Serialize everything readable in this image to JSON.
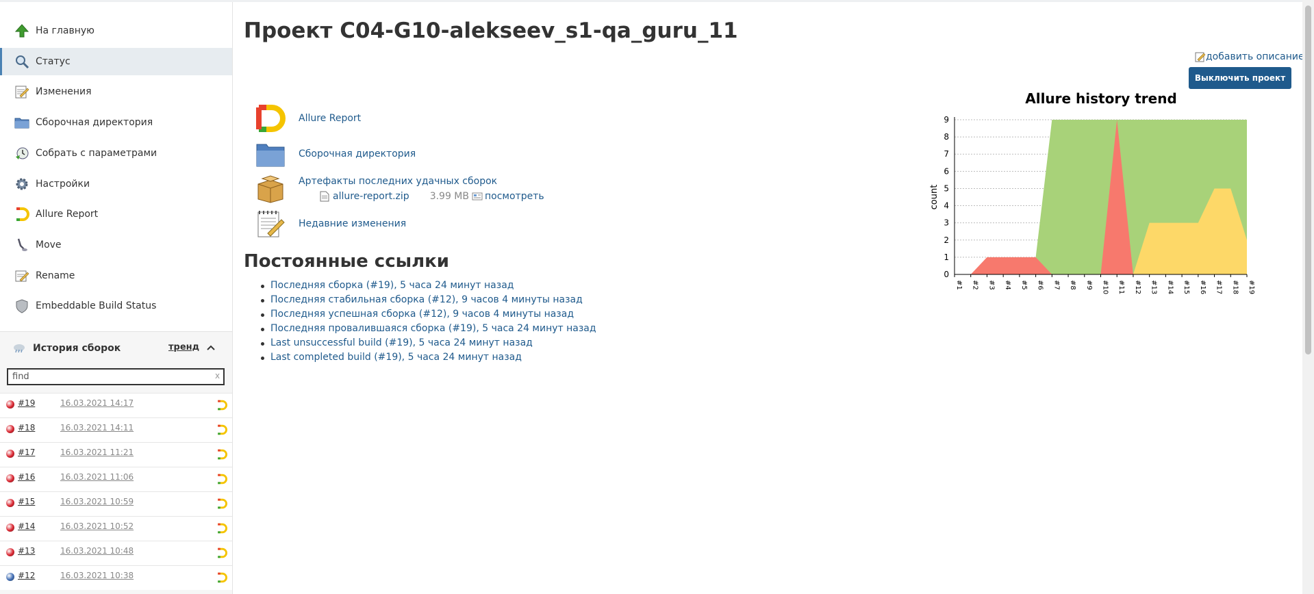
{
  "sidebar": {
    "tasks": [
      {
        "label": "На главную",
        "icon": "up-arrow-icon"
      },
      {
        "label": "Статус",
        "icon": "magnifier-icon"
      },
      {
        "label": "Изменения",
        "icon": "notepad-icon"
      },
      {
        "label": "Сборочная директория",
        "icon": "folder-icon"
      },
      {
        "label": "Собрать с параметрами",
        "icon": "clock-icon"
      },
      {
        "label": "Настройки",
        "icon": "gear-icon"
      },
      {
        "label": "Allure Report",
        "icon": "allure-icon"
      },
      {
        "label": "Move",
        "icon": "move-icon"
      },
      {
        "label": "Rename",
        "icon": "rename-icon"
      },
      {
        "label": "Embeddable Build Status",
        "icon": "shield-icon"
      }
    ],
    "active_index": 1
  },
  "history": {
    "title": "История сборок",
    "trend": "тренд",
    "search_value": "find",
    "clear": "x",
    "builds": [
      {
        "num": "#19",
        "date": "16.03.2021 14:17",
        "status": "failed"
      },
      {
        "num": "#18",
        "date": "16.03.2021 14:11",
        "status": "failed"
      },
      {
        "num": "#17",
        "date": "16.03.2021 11:21",
        "status": "failed"
      },
      {
        "num": "#16",
        "date": "16.03.2021 11:06",
        "status": "failed"
      },
      {
        "num": "#15",
        "date": "16.03.2021 10:59",
        "status": "failed"
      },
      {
        "num": "#14",
        "date": "16.03.2021 10:52",
        "status": "failed"
      },
      {
        "num": "#13",
        "date": "16.03.2021 10:48",
        "status": "failed"
      },
      {
        "num": "#12",
        "date": "16.03.2021 10:38",
        "status": "success"
      }
    ],
    "status_colors": {
      "failed": "#d9232e",
      "success": "#3f6cb3"
    }
  },
  "main": {
    "title": "Проект C04-G10-alekseev_s1-qa_guru_11",
    "add_description": "добавить описание",
    "disable_button": "Выключить проект",
    "links": [
      {
        "label": "Allure Report",
        "icon": "allure-icon"
      },
      {
        "label": "Сборочная директория",
        "icon": "folder-icon"
      },
      {
        "label": "Артефакты последних удачных сборок",
        "icon": "package-icon"
      },
      {
        "label": "Недавние изменения",
        "icon": "notepad-icon"
      }
    ],
    "artifact": {
      "file": "allure-report.zip",
      "size": "3.99 MB",
      "view": "посмотреть"
    },
    "permalinks_title": "Постоянные ссылки",
    "permalinks": [
      "Последняя сборка (#19), 5 часа 24 минут назад",
      "Последняя стабильная сборка (#12), 9 часов 4 минуты назад",
      "Последняя успешная сборка (#12), 9 часов 4 минуты назад",
      "Последняя провалившаяся сборка (#19), 5 часа 24 минут назад",
      "Last unsuccessful build (#19), 5 часа 24 минут назад",
      "Last completed build (#19), 5 часа 24 минут назад"
    ]
  },
  "chart_data": {
    "type": "area",
    "title": "Allure history trend",
    "ylabel": "count",
    "xlabel": "",
    "ylim": [
      0,
      9
    ],
    "yticks": [
      0,
      1,
      2,
      3,
      4,
      5,
      6,
      7,
      8,
      9
    ],
    "categories": [
      "#1",
      "#2",
      "#3",
      "#4",
      "#5",
      "#6",
      "#7",
      "#8",
      "#9",
      "#10",
      "#11",
      "#12",
      "#13",
      "#14",
      "#15",
      "#16",
      "#17",
      "#18",
      "#19"
    ],
    "series": [
      {
        "values": [
          0,
          0,
          0,
          0,
          0,
          1,
          9,
          9,
          9,
          9,
          9,
          9,
          9,
          9,
          9,
          9,
          9,
          9,
          9
        ],
        "color": "#a8d279"
      },
      {
        "values": [
          0,
          0,
          1,
          1,
          1,
          1,
          0,
          0,
          0,
          0,
          9,
          0,
          0,
          0,
          0,
          0,
          0,
          0,
          0
        ],
        "color": "#f7796d"
      },
      {
        "values": [
          0,
          0,
          0,
          0,
          0,
          0,
          0,
          0,
          0,
          0,
          0,
          0,
          3,
          3,
          3,
          3,
          5,
          5,
          2
        ],
        "color": "#fdd868"
      }
    ],
    "grid": true
  }
}
